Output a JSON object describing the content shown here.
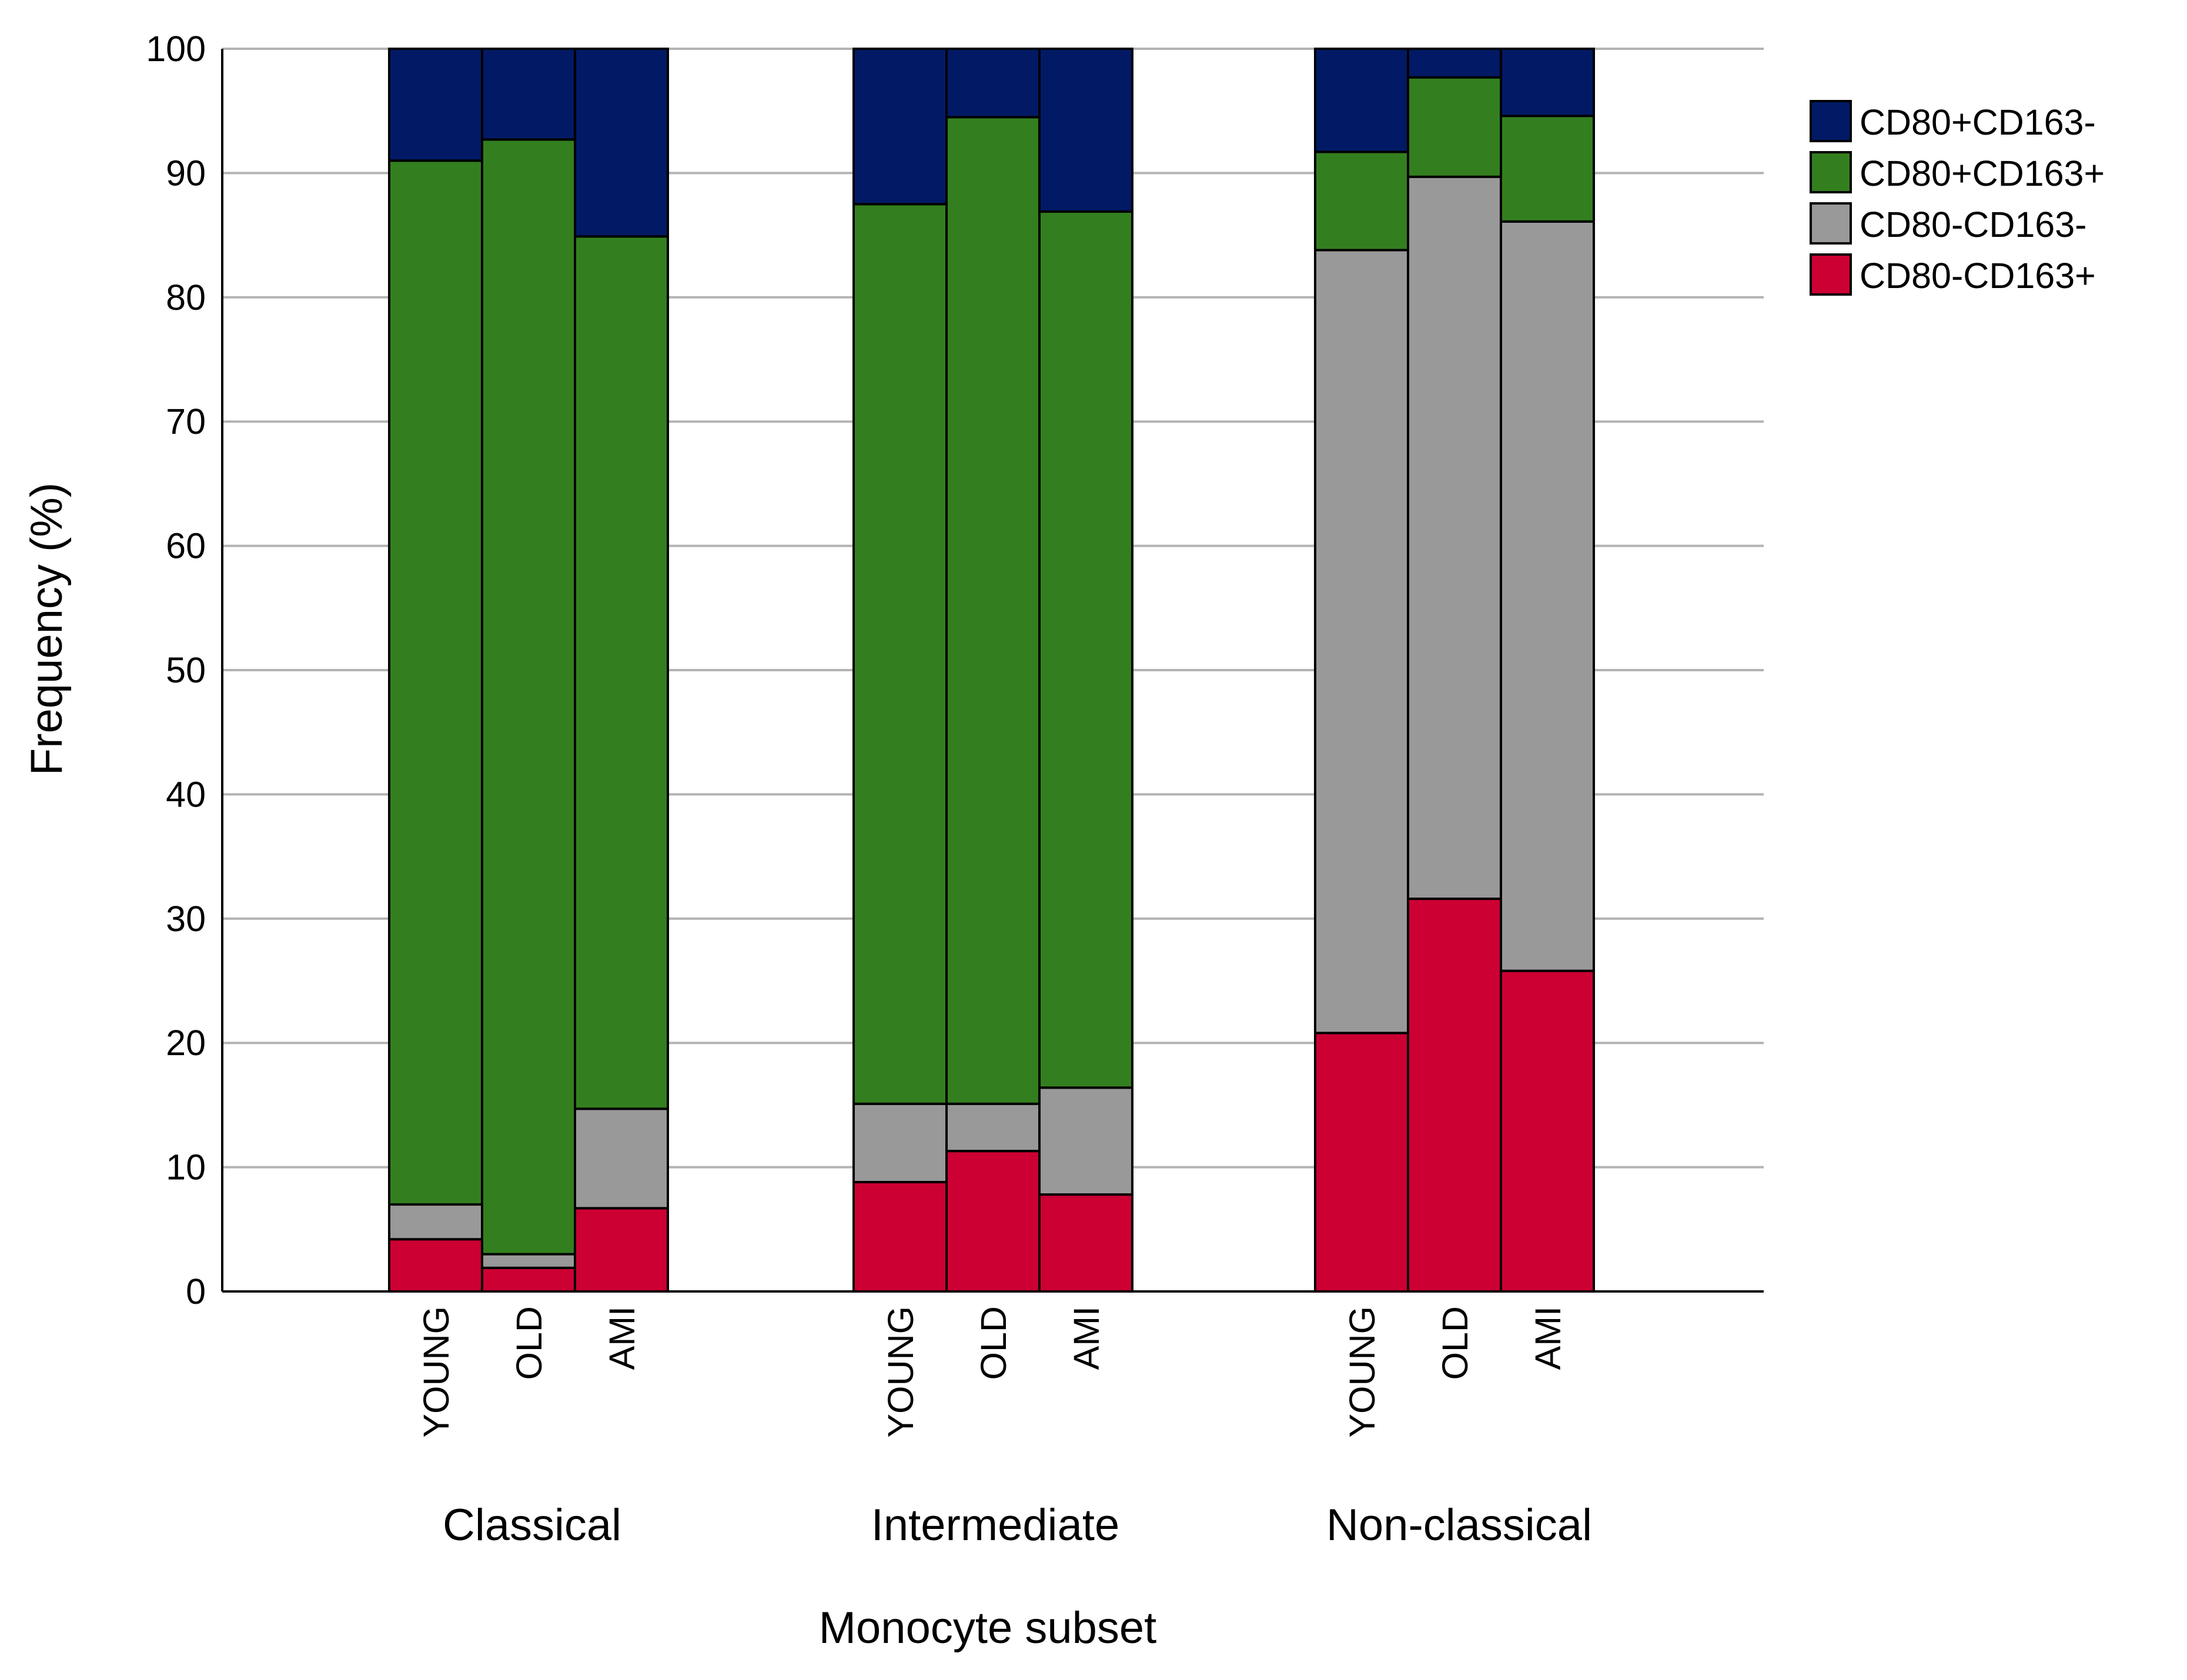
{
  "chart_data": {
    "type": "bar",
    "stacked": true,
    "xlabel": "Monocyte subset",
    "ylabel": "Frequency (%)",
    "ylim": [
      0,
      100
    ],
    "yticks": [
      0,
      10,
      20,
      30,
      40,
      50,
      60,
      70,
      80,
      90,
      100
    ],
    "grid": true,
    "legend_position": "top-right",
    "groups": [
      "Classical",
      "Intermediate",
      "Non-classical"
    ],
    "bar_labels": [
      "YOUNG",
      "OLD",
      "AMI"
    ],
    "categories": [
      "Classical YOUNG",
      "Classical OLD",
      "Classical AMI",
      "Intermediate YOUNG",
      "Intermediate OLD",
      "Intermediate AMI",
      "Non-classical YOUNG",
      "Non-classical OLD",
      "Non-classical AMI"
    ],
    "series": [
      {
        "name": "CD80-CD163+",
        "color": "#cc0033",
        "values": [
          4.2,
          1.9,
          6.7,
          8.8,
          11.3,
          7.8,
          20.8,
          31.6,
          25.8
        ]
      },
      {
        "name": "CD80-CD163-",
        "color": "#999999",
        "values": [
          2.8,
          1.1,
          8.0,
          6.3,
          3.8,
          8.6,
          63.0,
          58.1,
          60.3
        ]
      },
      {
        "name": "CD80+CD163+",
        "color": "#337f1f",
        "values": [
          84.0,
          89.7,
          70.2,
          72.4,
          79.4,
          70.5,
          7.9,
          8.0,
          8.5
        ]
      },
      {
        "name": "CD80+CD163-",
        "color": "#021a66",
        "values": [
          9.0,
          7.3,
          15.1,
          12.5,
          5.5,
          13.1,
          8.3,
          2.3,
          5.4
        ]
      }
    ],
    "legend_order": [
      "CD80+CD163-",
      "CD80+CD163+",
      "CD80-CD163-",
      "CD80-CD163+"
    ]
  }
}
